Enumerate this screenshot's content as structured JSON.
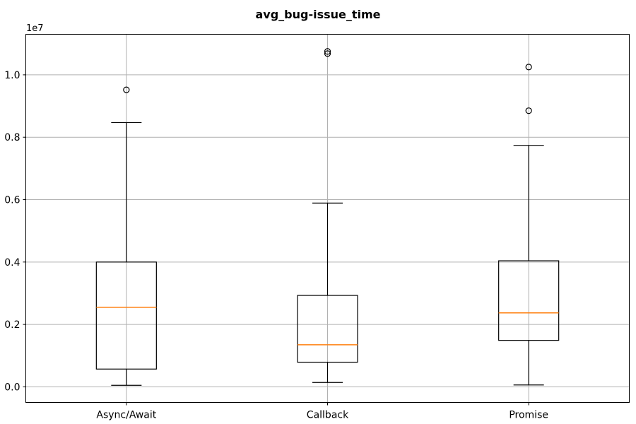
{
  "chart_data": {
    "type": "box",
    "title": "avg_bug-issue_time",
    "xlabel": "",
    "ylabel": "",
    "y_offset_label": "1e7",
    "y_scale": 10000000,
    "ylim": [
      -0.05,
      1.13
    ],
    "yticks": [
      0.0,
      0.2,
      0.4,
      0.6,
      0.8,
      1.0
    ],
    "ytick_labels": [
      "0.0",
      "0.2",
      "0.4",
      "0.6",
      "0.8",
      "1.0"
    ],
    "grid": true,
    "categories": [
      "Async/Await",
      "Callback",
      "Promise"
    ],
    "boxes": [
      {
        "label": "Async/Await",
        "whisker_low": 0.005,
        "q1": 0.057,
        "median": 0.255,
        "q3": 0.4,
        "whisker_high": 0.847,
        "fliers": [
          0.952
        ]
      },
      {
        "label": "Callback",
        "whisker_low": 0.014,
        "q1": 0.079,
        "median": 0.135,
        "q3": 0.293,
        "whisker_high": 0.589,
        "fliers": [
          1.068,
          1.075
        ]
      },
      {
        "label": "Promise",
        "whisker_low": 0.006,
        "q1": 0.149,
        "median": 0.237,
        "q3": 0.404,
        "whisker_high": 0.774,
        "fliers": [
          0.885,
          1.025
        ]
      }
    ],
    "colors": {
      "box": "#000000",
      "median": "#ff7f0e",
      "grid": "#b0b0b0"
    }
  }
}
